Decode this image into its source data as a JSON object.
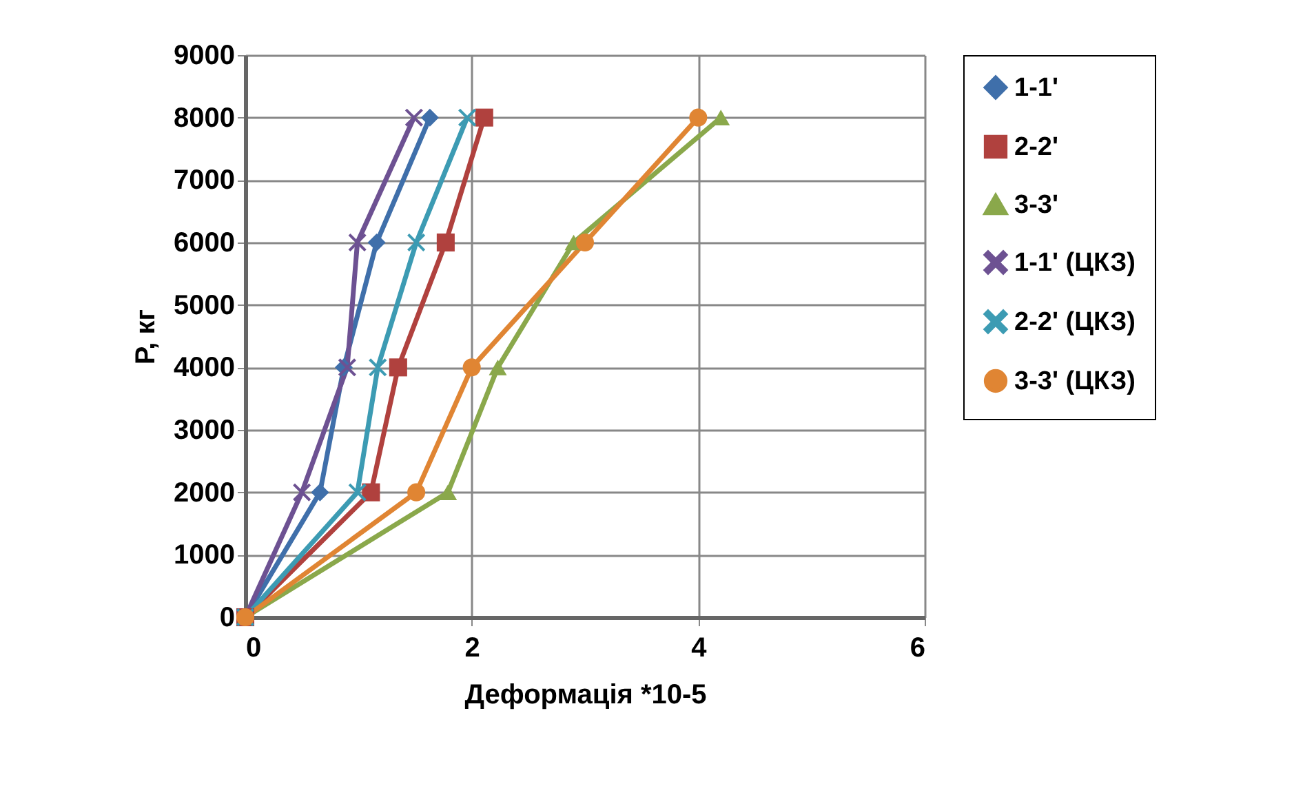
{
  "chart_data": {
    "type": "line",
    "xlabel": "Деформація *10-5",
    "ylabel": "P, кг",
    "xlim": [
      0,
      6
    ],
    "xticks": [
      0,
      2,
      4,
      6
    ],
    "ylim": [
      0,
      9000
    ],
    "yticks": [
      0,
      1000,
      2000,
      3000,
      4000,
      5000,
      6000,
      7000,
      8000,
      9000
    ],
    "grid": true,
    "legend": "right",
    "series": [
      {
        "name": "1-1'",
        "color": "#3f6faa",
        "marker": "diamond",
        "x": [
          0,
          0.66,
          0.87,
          1.16,
          1.63
        ],
        "values": [
          0,
          2000,
          4000,
          6000,
          8000
        ]
      },
      {
        "name": "2-2'",
        "color": "#b0413e",
        "marker": "square",
        "x": [
          0,
          1.11,
          1.35,
          1.77,
          2.11
        ],
        "values": [
          0,
          2000,
          4000,
          6000,
          8000
        ]
      },
      {
        "name": "3-3'",
        "color": "#8aa84b",
        "marker": "triangle",
        "x": [
          0,
          1.79,
          2.23,
          2.9,
          4.2
        ],
        "values": [
          0,
          2000,
          4000,
          6000,
          8000
        ]
      },
      {
        "name": "1-1' (ЦКЗ)",
        "color": "#6d5192",
        "marker": "cross",
        "x": [
          0,
          0.5,
          0.9,
          0.99,
          1.49
        ],
        "values": [
          0,
          2000,
          4000,
          6000,
          8000
        ]
      },
      {
        "name": "2-2' (ЦКЗ)",
        "color": "#3c9bb3",
        "marker": "cross",
        "x": [
          0,
          0.99,
          1.17,
          1.51,
          1.96
        ],
        "values": [
          0,
          2000,
          4000,
          6000,
          8000
        ]
      },
      {
        "name": "3-3' (ЦКЗ)",
        "color": "#e08533",
        "marker": "circle",
        "x": [
          0,
          1.51,
          2.0,
          3.0,
          4.0
        ],
        "values": [
          0,
          2000,
          4000,
          6000,
          8000
        ]
      }
    ]
  }
}
